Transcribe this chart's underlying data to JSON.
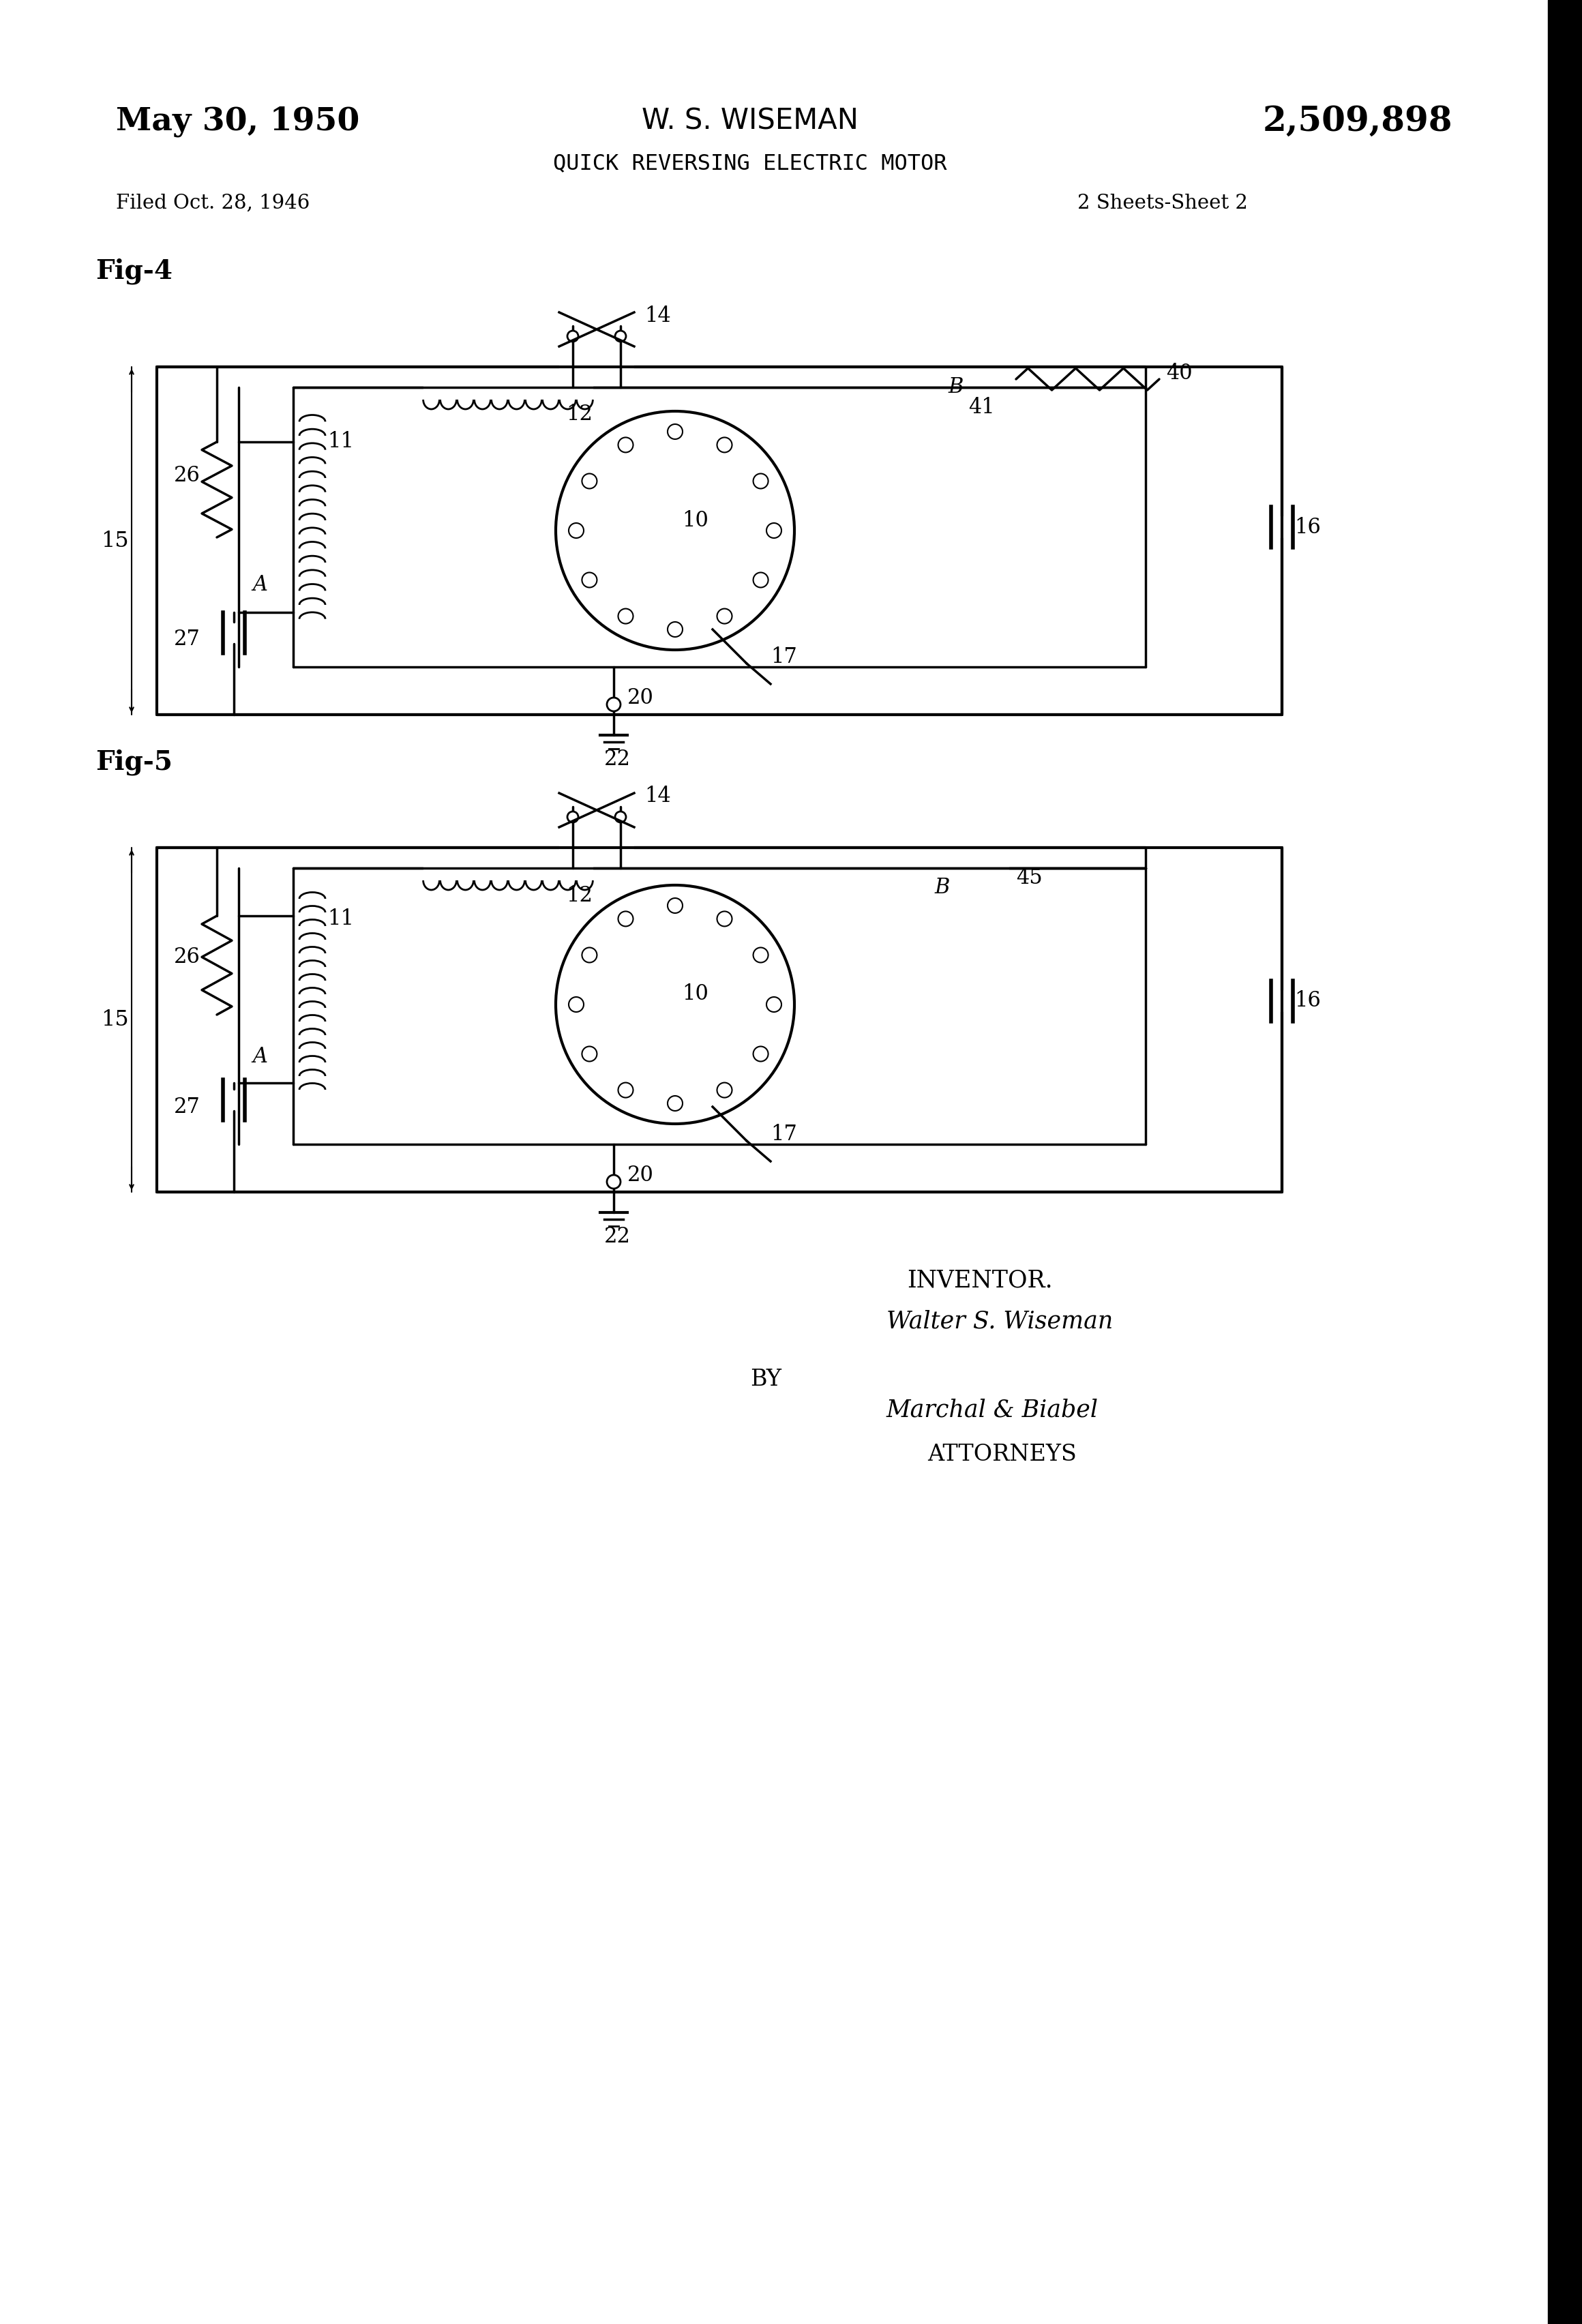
{
  "bg_color": "#ffffff",
  "line_color": "#000000",
  "title_left": "May 30, 1950",
  "title_center": "W. S. WISEMAN",
  "title_right": "2,509,898",
  "subtitle": "QUICK REVERSING ELECTRIC MOTOR",
  "filed": "Filed Oct. 28, 1946",
  "sheets": "2 Sheets-Sheet 2",
  "fig4_label": "Fig-4",
  "fig5_label": "Fig-5",
  "inventor_text": "INVENTOR.",
  "inventor_name": "Walter S. Wiseman",
  "by_text": "BY",
  "attorney_firm": "Marchal & Biabel",
  "attorneys_label": "ATTORNEYS"
}
